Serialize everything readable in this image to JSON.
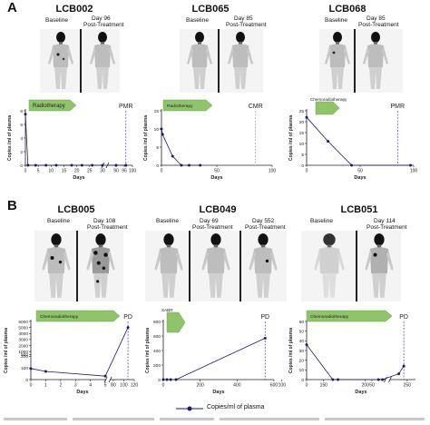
{
  "figure": {
    "panel_a": "A",
    "panel_b": "B",
    "legend_label": "Copies/ml of plasma"
  },
  "patients": [
    {
      "id": "LCB002",
      "baseline": "Baseline",
      "followup_day": "Day 96",
      "followup_note": "Post-Treatment"
    },
    {
      "id": "LCB065",
      "baseline": "Baseline",
      "followup_day": "Day 85",
      "followup_note": "Post-Treatment"
    },
    {
      "id": "LCB068",
      "baseline": "Baseline",
      "followup_day": "Day 85",
      "followup_note": "Post-Treatment"
    },
    {
      "id": "LCB005",
      "baseline": "Baseline",
      "followup_day": "Day 108",
      "followup_note": "Post-Treatment"
    },
    {
      "id": "LCB049",
      "baseline": "Baseline",
      "followup_day": "Day 69",
      "followup_note": "Post-Treatment",
      "followup2_day": "Day 552",
      "followup2_note": "Post-Treatment"
    },
    {
      "id": "LCB051",
      "baseline": "Baseline",
      "followup_day": "Day 114",
      "followup_note": "Post-Treatment"
    }
  ],
  "colors": {
    "line": "#1a1a6e",
    "marker": "#1a1a6e",
    "response_line": "#3a3ad0",
    "arrow_fill": "#8fc46a",
    "arrow_stroke": "#6aa84f"
  },
  "chart_data": [
    {
      "type": "line",
      "patient": "LCB002",
      "treatment": "Radiotherapy",
      "response": "PMR",
      "xlabel": "Days",
      "ylabel": "Copies /ml of plasma",
      "xticks": [
        "0",
        "5",
        "10",
        "15",
        "20",
        "25",
        "30",
        "90",
        "95",
        "100"
      ],
      "yticks": [
        "0",
        "2",
        "4",
        "6",
        "8"
      ],
      "xlim": [
        0,
        100
      ],
      "ylim": [
        0,
        8
      ],
      "x_break": [
        30,
        85
      ],
      "response_day": 96,
      "series": [
        {
          "x": [
            0,
            1,
            4,
            8,
            12,
            18,
            22,
            26,
            30,
            90,
            96
          ],
          "y": [
            7.5,
            0,
            0,
            0,
            0,
            0,
            0,
            0,
            0,
            0,
            0
          ]
        }
      ]
    },
    {
      "type": "line",
      "patient": "LCB065",
      "treatment": "Radiotherapy",
      "response": "CMR",
      "xlabel": "Days",
      "ylabel": "Copies /ml of plasma",
      "xticks": [
        "0",
        "50",
        "100"
      ],
      "yticks": [
        "0",
        "5",
        "10",
        "15"
      ],
      "xlim": [
        0,
        100
      ],
      "ylim": [
        0,
        15
      ],
      "response_day": 85,
      "series": [
        {
          "x": [
            0,
            1,
            10,
            18,
            25,
            35
          ],
          "y": [
            10,
            8.5,
            2.5,
            0,
            0,
            0
          ]
        }
      ]
    },
    {
      "type": "line",
      "patient": "LCB068",
      "treatment": "Chemoradiotherapy",
      "response": "PMR",
      "xlabel": "Days",
      "ylabel": "Copies /ml of plasma",
      "xticks": [
        "0",
        "50",
        "100"
      ],
      "yticks": [
        "0",
        "5",
        "10",
        "15",
        "20",
        "25"
      ],
      "xlim": [
        0,
        100
      ],
      "ylim": [
        0,
        25
      ],
      "response_day": 85,
      "series": [
        {
          "x": [
            0,
            20,
            42,
            97
          ],
          "y": [
            22,
            11,
            0,
            0
          ]
        }
      ]
    },
    {
      "type": "line",
      "patient": "LCB005",
      "treatment": "Chemoradiotherapy",
      "response": "PD",
      "xlabel": "Days",
      "ylabel": "Copies /ml of plasma",
      "xticks": [
        "0",
        "1",
        "2",
        "3",
        "4",
        "5",
        "80",
        "100",
        "120"
      ],
      "yticks": [
        "0",
        "100",
        "200",
        "500",
        "1000",
        "2000",
        "3000",
        "4000",
        "5000",
        "6000"
      ],
      "xlim": [
        0,
        120
      ],
      "ylim": [
        0,
        6000
      ],
      "x_break": [
        5,
        75
      ],
      "response_day": 108,
      "series": [
        {
          "x": [
            0,
            1,
            5,
            108
          ],
          "y": [
            95,
            70,
            30,
            5000
          ]
        }
      ]
    },
    {
      "type": "line",
      "patient": "LCB049",
      "treatment": "SABR",
      "response": "PD",
      "xlabel": "Days",
      "ylabel": "Copies /ml of plasma",
      "xticks": [
        "0",
        "200",
        "400",
        "600"
      ],
      "yticks": [
        "0",
        "200",
        "400",
        "600",
        "800"
      ],
      "xlim": [
        0,
        600
      ],
      "ylim": [
        0,
        800
      ],
      "response_day": 552,
      "series": [
        {
          "x": [
            0,
            20,
            40,
            69,
            552
          ],
          "y": [
            0,
            0,
            0,
            0,
            570
          ]
        }
      ]
    },
    {
      "type": "line",
      "patient": "LCB051",
      "treatment": "Chemoradiotherapy",
      "response": "PD",
      "xlabel": "Days",
      "ylabel": "Copies /ml of plasma",
      "xticks": [
        "0",
        "50",
        "100",
        "150",
        "200",
        "250"
      ],
      "yticks": [
        "0",
        "10",
        "20",
        "30",
        "40",
        "50",
        "60"
      ],
      "xlim": [
        0,
        260
      ],
      "ylim": [
        0,
        60
      ],
      "x_break": [
        60,
        230
      ],
      "response_day": 246,
      "series": [
        {
          "x": [
            0,
            20,
            24,
            55,
            58,
            240,
            246
          ],
          "y": [
            36,
            0,
            0,
            0,
            0,
            6,
            14
          ]
        }
      ]
    }
  ]
}
